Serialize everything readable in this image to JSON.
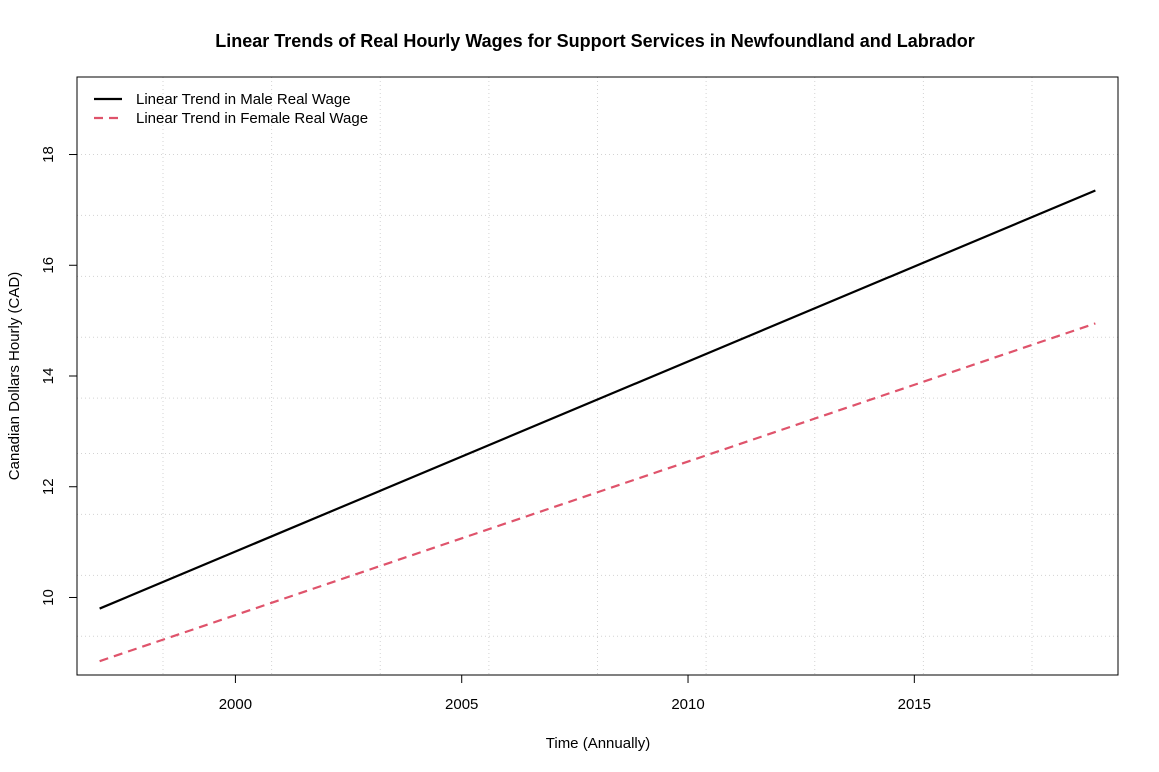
{
  "chart_data": {
    "type": "line",
    "title": "Linear Trends of Real Hourly Wages for Support Services in Newfoundland and Labrador",
    "xlabel": "Time (Annually)",
    "ylabel": "Canadian Dollars Hourly (CAD)",
    "xlim": [
      1996.5,
      2019.5
    ],
    "ylim": [
      8.6,
      19.4
    ],
    "x_ticks": [
      2000,
      2005,
      2010,
      2015
    ],
    "x_tick_labels": [
      "2000",
      "2005",
      "2010",
      "2015"
    ],
    "y_ticks": [
      10,
      12,
      14,
      16,
      18
    ],
    "y_tick_labels": [
      "10",
      "12",
      "14",
      "16",
      "18"
    ],
    "grid": true,
    "x_grid": [
      1996,
      1998.4,
      2000.8,
      2003.2,
      2005.6,
      2008,
      2010.4,
      2012.8,
      2015.2,
      2017.6
    ],
    "y_grid": [
      8.3,
      9.3,
      10.4,
      11.5,
      12.6,
      13.6,
      14.7,
      15.8,
      16.9,
      18.0
    ],
    "legend_position": "top-left",
    "series": [
      {
        "name": "Linear Trend in Male Real Wage",
        "color": "#000000",
        "dash": "solid",
        "x": [
          1997,
          2019
        ],
        "y": [
          9.8,
          17.35
        ]
      },
      {
        "name": "Linear Trend in Female Real Wage",
        "color": "#DF536B",
        "dash": "dashed",
        "x": [
          1997,
          2019
        ],
        "y": [
          8.85,
          14.95
        ]
      }
    ]
  }
}
